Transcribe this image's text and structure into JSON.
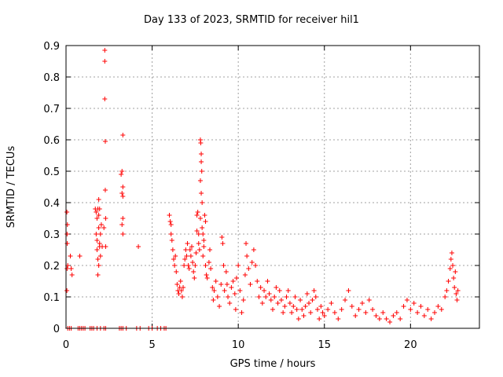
{
  "chart_data": {
    "type": "scatter",
    "title": "Day 133 of 2023, SRMTID for receiver hil1",
    "xlabel": "GPS time / hours",
    "ylabel": "SRMTID / TECUs",
    "xlim": [
      0,
      24
    ],
    "ylim": [
      0,
      0.9
    ],
    "xticks": [
      "0",
      "5",
      "10",
      "15",
      "20"
    ],
    "xtick_values": [
      0,
      5,
      10,
      15,
      20
    ],
    "yticks": [
      "0",
      "0.1",
      "0.2",
      "0.3",
      "0.4",
      "0.5",
      "0.6",
      "0.7",
      "0.8",
      "0.9"
    ],
    "ytick_values": [
      0,
      0.1,
      0.2,
      0.3,
      0.4,
      0.5,
      0.6,
      0.7,
      0.8,
      0.9
    ],
    "grid": true,
    "marker": "+",
    "color": "#ff0000",
    "series": [
      {
        "name": "SRMTID",
        "points": [
          [
            0.05,
            0.37
          ],
          [
            0.06,
            0.3
          ],
          [
            0.07,
            0.27
          ],
          [
            0.08,
            0.33
          ],
          [
            0.06,
            0.19
          ],
          [
            0.05,
            0.12
          ],
          [
            0.1,
            0.2
          ],
          [
            0.25,
            0.23
          ],
          [
            0.3,
            0.19
          ],
          [
            0.35,
            0.17
          ],
          [
            0.8,
            0.23
          ],
          [
            0.1,
            0
          ],
          [
            0.2,
            0
          ],
          [
            0.3,
            0
          ],
          [
            0.7,
            0
          ],
          [
            0.8,
            0
          ],
          [
            0.9,
            0
          ],
          [
            1.0,
            0
          ],
          [
            1.1,
            0
          ],
          [
            1.4,
            0
          ],
          [
            1.5,
            0
          ],
          [
            1.6,
            0
          ],
          [
            1.8,
            0
          ],
          [
            2.0,
            0
          ],
          [
            2.2,
            0
          ],
          [
            2.3,
            0
          ],
          [
            3.1,
            0
          ],
          [
            3.2,
            0
          ],
          [
            3.3,
            0
          ],
          [
            3.5,
            0
          ],
          [
            4.1,
            0
          ],
          [
            4.3,
            0
          ],
          [
            4.8,
            0
          ],
          [
            5.0,
            0
          ],
          [
            5.3,
            0
          ],
          [
            5.5,
            0
          ],
          [
            5.7,
            0
          ],
          [
            5.8,
            0
          ],
          [
            1.7,
            0.38
          ],
          [
            1.75,
            0.37
          ],
          [
            1.8,
            0.35
          ],
          [
            1.85,
            0.38
          ],
          [
            1.9,
            0.36
          ],
          [
            1.95,
            0.38
          ],
          [
            1.75,
            0.3
          ],
          [
            1.8,
            0.28
          ],
          [
            1.9,
            0.32
          ],
          [
            2.0,
            0.3
          ],
          [
            1.8,
            0.25
          ],
          [
            1.85,
            0.22
          ],
          [
            1.9,
            0.2
          ],
          [
            1.85,
            0.17
          ],
          [
            1.95,
            0.26
          ],
          [
            2.0,
            0.23
          ],
          [
            2.05,
            0.33
          ],
          [
            2.1,
            0.26
          ],
          [
            1.9,
            0.41
          ],
          [
            1.95,
            0.27
          ],
          [
            2.25,
            0.885
          ],
          [
            2.25,
            0.85
          ],
          [
            2.25,
            0.73
          ],
          [
            2.28,
            0.595
          ],
          [
            2.28,
            0.44
          ],
          [
            2.3,
            0.35
          ],
          [
            2.3,
            0.26
          ],
          [
            2.2,
            0.32
          ],
          [
            3.3,
            0.615
          ],
          [
            3.25,
            0.5
          ],
          [
            3.2,
            0.49
          ],
          [
            3.25,
            0.43
          ],
          [
            3.3,
            0.45
          ],
          [
            3.3,
            0.42
          ],
          [
            3.3,
            0.35
          ],
          [
            3.3,
            0.3
          ],
          [
            3.25,
            0.33
          ],
          [
            4.2,
            0.26
          ],
          [
            6.0,
            0.36
          ],
          [
            6.05,
            0.34
          ],
          [
            6.1,
            0.33
          ],
          [
            6.1,
            0.3
          ],
          [
            6.15,
            0.28
          ],
          [
            6.2,
            0.25
          ],
          [
            6.25,
            0.22
          ],
          [
            6.3,
            0.2
          ],
          [
            6.35,
            0.23
          ],
          [
            6.4,
            0.18
          ],
          [
            6.45,
            0.14
          ],
          [
            6.5,
            0.12
          ],
          [
            6.55,
            0.11
          ],
          [
            6.6,
            0.13
          ],
          [
            6.65,
            0.15
          ],
          [
            6.7,
            0.12
          ],
          [
            6.75,
            0.1
          ],
          [
            6.8,
            0.13
          ],
          [
            6.85,
            0.2
          ],
          [
            6.9,
            0.22
          ],
          [
            6.95,
            0.25
          ],
          [
            7.0,
            0.23
          ],
          [
            7.05,
            0.27
          ],
          [
            7.1,
            0.2
          ],
          [
            7.15,
            0.19
          ],
          [
            7.2,
            0.25
          ],
          [
            7.25,
            0.23
          ],
          [
            7.3,
            0.26
          ],
          [
            7.35,
            0.21
          ],
          [
            7.4,
            0.18
          ],
          [
            7.45,
            0.16
          ],
          [
            7.5,
            0.2
          ],
          [
            7.55,
            0.24
          ],
          [
            7.6,
            0.31
          ],
          [
            7.6,
            0.36
          ],
          [
            7.65,
            0.37
          ],
          [
            7.7,
            0.3
          ],
          [
            7.7,
            0.27
          ],
          [
            7.75,
            0.25
          ],
          [
            7.8,
            0.6
          ],
          [
            7.82,
            0.59
          ],
          [
            7.85,
            0.555
          ],
          [
            7.85,
            0.53
          ],
          [
            7.88,
            0.5
          ],
          [
            7.8,
            0.47
          ],
          [
            7.85,
            0.43
          ],
          [
            7.9,
            0.4
          ],
          [
            7.8,
            0.35
          ],
          [
            7.9,
            0.32
          ],
          [
            7.95,
            0.3
          ],
          [
            8.0,
            0.28
          ],
          [
            8.05,
            0.36
          ],
          [
            8.1,
            0.34
          ],
          [
            8.0,
            0.26
          ],
          [
            7.95,
            0.23
          ],
          [
            8.1,
            0.2
          ],
          [
            8.15,
            0.17
          ],
          [
            8.2,
            0.16
          ],
          [
            8.3,
            0.21
          ],
          [
            8.35,
            0.25
          ],
          [
            8.4,
            0.19
          ],
          [
            8.5,
            0.13
          ],
          [
            8.55,
            0.09
          ],
          [
            8.6,
            0.12
          ],
          [
            8.7,
            0.15
          ],
          [
            8.8,
            0.1
          ],
          [
            8.9,
            0.07
          ],
          [
            9.0,
            0.14
          ],
          [
            9.05,
            0.29
          ],
          [
            9.1,
            0.27
          ],
          [
            9.15,
            0.2
          ],
          [
            9.2,
            0.12
          ],
          [
            9.3,
            0.18
          ],
          [
            9.35,
            0.14
          ],
          [
            9.4,
            0.1
          ],
          [
            9.5,
            0.08
          ],
          [
            9.6,
            0.13
          ],
          [
            9.7,
            0.15
          ],
          [
            9.8,
            0.11
          ],
          [
            9.85,
            0.06
          ],
          [
            9.9,
            0.16
          ],
          [
            10.0,
            0.2
          ],
          [
            10.1,
            0.12
          ],
          [
            10.2,
            0.05
          ],
          [
            10.3,
            0.09
          ],
          [
            10.4,
            0.17
          ],
          [
            10.45,
            0.27
          ],
          [
            10.5,
            0.23
          ],
          [
            10.6,
            0.19
          ],
          [
            10.7,
            0.14
          ],
          [
            10.8,
            0.21
          ],
          [
            10.9,
            0.25
          ],
          [
            11.0,
            0.2
          ],
          [
            11.1,
            0.15
          ],
          [
            11.2,
            0.1
          ],
          [
            11.3,
            0.13
          ],
          [
            11.4,
            0.08
          ],
          [
            11.5,
            0.12
          ],
          [
            11.6,
            0.1
          ],
          [
            11.7,
            0.15
          ],
          [
            11.8,
            0.11
          ],
          [
            11.9,
            0.09
          ],
          [
            12.0,
            0.06
          ],
          [
            12.1,
            0.1
          ],
          [
            12.2,
            0.13
          ],
          [
            12.3,
            0.08
          ],
          [
            12.4,
            0.12
          ],
          [
            12.5,
            0.09
          ],
          [
            12.6,
            0.05
          ],
          [
            12.7,
            0.07
          ],
          [
            12.8,
            0.1
          ],
          [
            12.9,
            0.12
          ],
          [
            13.0,
            0.08
          ],
          [
            13.1,
            0.05
          ],
          [
            13.2,
            0.07
          ],
          [
            13.3,
            0.1
          ],
          [
            13.4,
            0.06
          ],
          [
            13.5,
            0.03
          ],
          [
            13.6,
            0.09
          ],
          [
            13.7,
            0.06
          ],
          [
            13.8,
            0.04
          ],
          [
            13.9,
            0.07
          ],
          [
            14.0,
            0.11
          ],
          [
            14.1,
            0.08
          ],
          [
            14.2,
            0.05
          ],
          [
            14.3,
            0.09
          ],
          [
            14.4,
            0.12
          ],
          [
            14.5,
            0.1
          ],
          [
            14.6,
            0.06
          ],
          [
            14.7,
            0.03
          ],
          [
            14.8,
            0.07
          ],
          [
            14.9,
            0.05
          ],
          [
            15.0,
            0.04
          ],
          [
            15.2,
            0.06
          ],
          [
            15.4,
            0.08
          ],
          [
            15.6,
            0.05
          ],
          [
            15.8,
            0.03
          ],
          [
            16.0,
            0.06
          ],
          [
            16.2,
            0.09
          ],
          [
            16.4,
            0.12
          ],
          [
            16.6,
            0.07
          ],
          [
            16.8,
            0.04
          ],
          [
            17.0,
            0.06
          ],
          [
            17.2,
            0.08
          ],
          [
            17.4,
            0.05
          ],
          [
            17.6,
            0.09
          ],
          [
            17.8,
            0.06
          ],
          [
            18.0,
            0.04
          ],
          [
            18.2,
            0.03
          ],
          [
            18.4,
            0.05
          ],
          [
            18.6,
            0.03
          ],
          [
            18.8,
            0.02
          ],
          [
            19.0,
            0.04
          ],
          [
            19.2,
            0.05
          ],
          [
            19.4,
            0.03
          ],
          [
            19.6,
            0.07
          ],
          [
            19.8,
            0.09
          ],
          [
            20.0,
            0.06
          ],
          [
            20.2,
            0.08
          ],
          [
            20.4,
            0.05
          ],
          [
            20.6,
            0.07
          ],
          [
            20.8,
            0.04
          ],
          [
            21.0,
            0.06
          ],
          [
            21.2,
            0.03
          ],
          [
            21.4,
            0.05
          ],
          [
            21.6,
            0.07
          ],
          [
            21.8,
            0.06
          ],
          [
            22.0,
            0.1
          ],
          [
            22.1,
            0.12
          ],
          [
            22.2,
            0.15
          ],
          [
            22.3,
            0.19
          ],
          [
            22.35,
            0.22
          ],
          [
            22.4,
            0.24
          ],
          [
            22.45,
            0.2
          ],
          [
            22.5,
            0.16
          ],
          [
            22.55,
            0.13
          ],
          [
            22.6,
            0.18
          ],
          [
            22.65,
            0.11
          ],
          [
            22.7,
            0.09
          ],
          [
            22.75,
            0.12
          ]
        ]
      }
    ]
  }
}
